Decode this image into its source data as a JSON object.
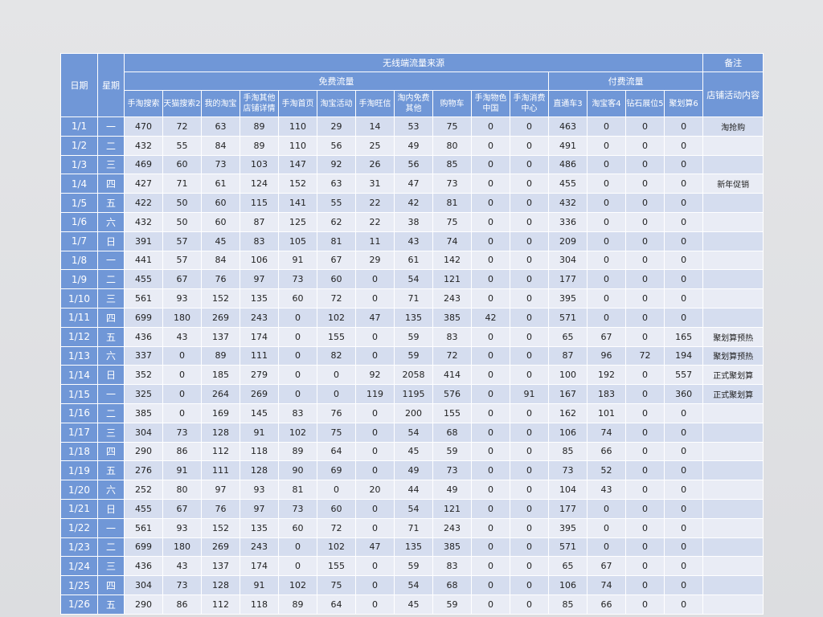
{
  "headers": {
    "date": "日期",
    "weekday": "星期",
    "wireless_source": "无线端流量来源",
    "remarks": "备注",
    "free_traffic": "免费流量",
    "paid_traffic": "付费流量",
    "store_activity": "店铺活动内容",
    "columns": [
      "手淘搜索",
      "天猫搜索2",
      "我的淘宝",
      "手淘其他店铺详情",
      "手淘首页",
      "淘宝活动",
      "手淘旺信",
      "淘内免费其他",
      "购物车",
      "手淘物色中国",
      "手淘消费中心",
      "直通车3",
      "淘宝客4",
      "钻石展位5",
      "聚划算6"
    ]
  },
  "rows": [
    {
      "date": "1/1",
      "day": "一",
      "values": [
        "470",
        "72",
        "63",
        "89",
        "110",
        "29",
        "14",
        "53",
        "75",
        "0",
        "0",
        "463",
        "0",
        "0",
        "0"
      ],
      "note": "淘抢购"
    },
    {
      "date": "1/2",
      "day": "二",
      "values": [
        "432",
        "55",
        "84",
        "89",
        "110",
        "56",
        "25",
        "49",
        "80",
        "0",
        "0",
        "491",
        "0",
        "0",
        "0"
      ],
      "note": ""
    },
    {
      "date": "1/3",
      "day": "三",
      "values": [
        "469",
        "60",
        "73",
        "103",
        "147",
        "92",
        "26",
        "56",
        "85",
        "0",
        "0",
        "486",
        "0",
        "0",
        "0"
      ],
      "note": ""
    },
    {
      "date": "1/4",
      "day": "四",
      "values": [
        "427",
        "71",
        "61",
        "124",
        "152",
        "63",
        "31",
        "47",
        "73",
        "0",
        "0",
        "455",
        "0",
        "0",
        "0"
      ],
      "note": "新年促销"
    },
    {
      "date": "1/5",
      "day": "五",
      "values": [
        "422",
        "50",
        "60",
        "115",
        "141",
        "55",
        "22",
        "42",
        "81",
        "0",
        "0",
        "432",
        "0",
        "0",
        "0"
      ],
      "note": ""
    },
    {
      "date": "1/6",
      "day": "六",
      "values": [
        "432",
        "50",
        "60",
        "87",
        "125",
        "62",
        "22",
        "38",
        "75",
        "0",
        "0",
        "336",
        "0",
        "0",
        "0"
      ],
      "note": ""
    },
    {
      "date": "1/7",
      "day": "日",
      "values": [
        "391",
        "57",
        "45",
        "83",
        "105",
        "81",
        "11",
        "43",
        "74",
        "0",
        "0",
        "209",
        "0",
        "0",
        "0"
      ],
      "note": ""
    },
    {
      "date": "1/8",
      "day": "一",
      "values": [
        "441",
        "57",
        "84",
        "106",
        "91",
        "67",
        "29",
        "61",
        "142",
        "0",
        "0",
        "304",
        "0",
        "0",
        "0"
      ],
      "note": ""
    },
    {
      "date": "1/9",
      "day": "二",
      "values": [
        "455",
        "67",
        "76",
        "97",
        "73",
        "60",
        "0",
        "54",
        "121",
        "0",
        "0",
        "177",
        "0",
        "0",
        "0"
      ],
      "note": ""
    },
    {
      "date": "1/10",
      "day": "三",
      "values": [
        "561",
        "93",
        "152",
        "135",
        "60",
        "72",
        "0",
        "71",
        "243",
        "0",
        "0",
        "395",
        "0",
        "0",
        "0"
      ],
      "note": ""
    },
    {
      "date": "1/11",
      "day": "四",
      "values": [
        "699",
        "180",
        "269",
        "243",
        "0",
        "102",
        "47",
        "135",
        "385",
        "42",
        "0",
        "571",
        "0",
        "0",
        "0"
      ],
      "note": ""
    },
    {
      "date": "1/12",
      "day": "五",
      "values": [
        "436",
        "43",
        "137",
        "174",
        "0",
        "155",
        "0",
        "59",
        "83",
        "0",
        "0",
        "65",
        "67",
        "0",
        "165"
      ],
      "note": "聚划算预热"
    },
    {
      "date": "1/13",
      "day": "六",
      "values": [
        "337",
        "0",
        "89",
        "111",
        "0",
        "82",
        "0",
        "59",
        "72",
        "0",
        "0",
        "87",
        "96",
        "72",
        "194"
      ],
      "note": "聚划算预热"
    },
    {
      "date": "1/14",
      "day": "日",
      "values": [
        "352",
        "0",
        "185",
        "279",
        "0",
        "0",
        "92",
        "2058",
        "414",
        "0",
        "0",
        "100",
        "192",
        "0",
        "557"
      ],
      "note": "正式聚划算"
    },
    {
      "date": "1/15",
      "day": "一",
      "values": [
        "325",
        "0",
        "264",
        "269",
        "0",
        "0",
        "119",
        "1195",
        "576",
        "0",
        "91",
        "167",
        "183",
        "0",
        "360"
      ],
      "note": "正式聚划算"
    },
    {
      "date": "1/16",
      "day": "二",
      "values": [
        "385",
        "0",
        "169",
        "145",
        "83",
        "76",
        "0",
        "200",
        "155",
        "0",
        "0",
        "162",
        "101",
        "0",
        "0"
      ],
      "note": ""
    },
    {
      "date": "1/17",
      "day": "三",
      "values": [
        "304",
        "73",
        "128",
        "91",
        "102",
        "75",
        "0",
        "54",
        "68",
        "0",
        "0",
        "106",
        "74",
        "0",
        "0"
      ],
      "note": ""
    },
    {
      "date": "1/18",
      "day": "四",
      "values": [
        "290",
        "86",
        "112",
        "118",
        "89",
        "64",
        "0",
        "45",
        "59",
        "0",
        "0",
        "85",
        "66",
        "0",
        "0"
      ],
      "note": ""
    },
    {
      "date": "1/19",
      "day": "五",
      "values": [
        "276",
        "91",
        "111",
        "128",
        "90",
        "69",
        "0",
        "49",
        "73",
        "0",
        "0",
        "73",
        "52",
        "0",
        "0"
      ],
      "note": ""
    },
    {
      "date": "1/20",
      "day": "六",
      "values": [
        "252",
        "80",
        "97",
        "93",
        "81",
        "0",
        "20",
        "44",
        "49",
        "0",
        "0",
        "104",
        "43",
        "0",
        "0"
      ],
      "note": ""
    },
    {
      "date": "1/21",
      "day": "日",
      "values": [
        "455",
        "67",
        "76",
        "97",
        "73",
        "60",
        "0",
        "54",
        "121",
        "0",
        "0",
        "177",
        "0",
        "0",
        "0"
      ],
      "note": ""
    },
    {
      "date": "1/22",
      "day": "一",
      "values": [
        "561",
        "93",
        "152",
        "135",
        "60",
        "72",
        "0",
        "71",
        "243",
        "0",
        "0",
        "395",
        "0",
        "0",
        "0"
      ],
      "note": ""
    },
    {
      "date": "1/23",
      "day": "二",
      "values": [
        "699",
        "180",
        "269",
        "243",
        "0",
        "102",
        "47",
        "135",
        "385",
        "0",
        "0",
        "571",
        "0",
        "0",
        "0"
      ],
      "note": ""
    },
    {
      "date": "1/24",
      "day": "三",
      "values": [
        "436",
        "43",
        "137",
        "174",
        "0",
        "155",
        "0",
        "59",
        "83",
        "0",
        "0",
        "65",
        "67",
        "0",
        "0"
      ],
      "note": ""
    },
    {
      "date": "1/25",
      "day": "四",
      "values": [
        "304",
        "73",
        "128",
        "91",
        "102",
        "75",
        "0",
        "54",
        "68",
        "0",
        "0",
        "106",
        "74",
        "0",
        "0"
      ],
      "note": ""
    },
    {
      "date": "1/26",
      "day": "五",
      "values": [
        "290",
        "86",
        "112",
        "118",
        "89",
        "64",
        "0",
        "45",
        "59",
        "0",
        "0",
        "85",
        "66",
        "0",
        "0"
      ],
      "note": ""
    }
  ],
  "colors": {
    "header_bg": "#7097d7",
    "row_odd": "#d5ddef",
    "row_even": "#e9ecf5",
    "page_bg": "#e0e1e3"
  }
}
